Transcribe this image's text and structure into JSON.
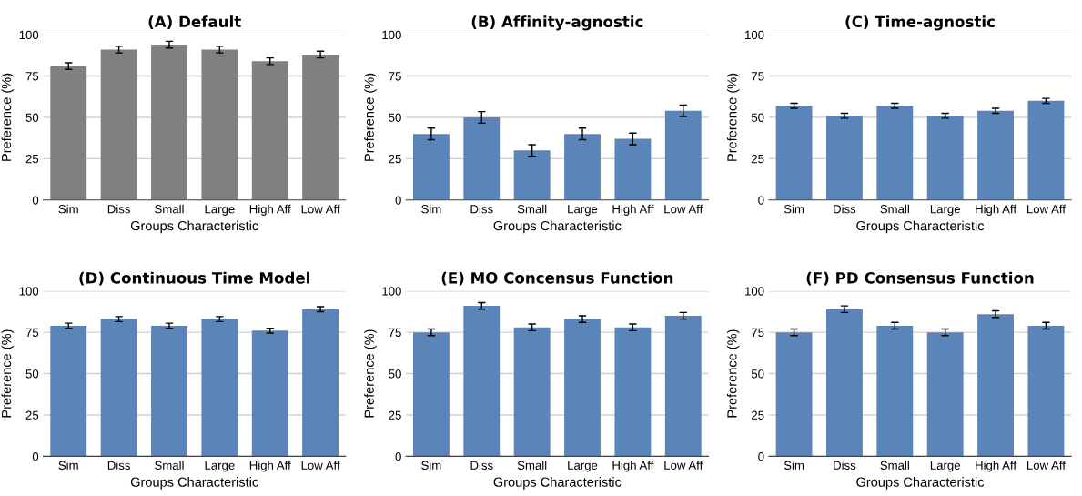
{
  "chart_data": [
    {
      "type": "bar",
      "title": "(A) Default",
      "xlabel": "Groups Characteristic",
      "ylabel": "Preference (%)",
      "categories": [
        "Sim",
        "Diss",
        "Small",
        "Large",
        "High Aff",
        "Low Aff"
      ],
      "values": [
        81,
        91,
        94,
        91,
        84,
        88
      ],
      "errors": [
        2,
        2,
        2,
        2,
        2,
        2
      ],
      "color": "#808080",
      "ylim": [
        0,
        100
      ],
      "yticks": [
        0,
        25,
        50,
        75,
        100
      ],
      "grid": "y"
    },
    {
      "type": "bar",
      "title": "(B) Affinity-agnostic",
      "xlabel": "Groups Characteristic",
      "ylabel": "Preference (%)",
      "categories": [
        "Sim",
        "Diss",
        "Small",
        "Large",
        "High Aff",
        "Low Aff"
      ],
      "values": [
        40,
        50,
        30,
        40,
        37,
        54
      ],
      "errors": [
        3.5,
        3.5,
        3.5,
        3.5,
        3.5,
        3.5
      ],
      "color": "#5b84b8",
      "ylim": [
        0,
        100
      ],
      "yticks": [
        0,
        25,
        50,
        75,
        100
      ],
      "grid": "y"
    },
    {
      "type": "bar",
      "title": "(C) Time-agnostic",
      "xlabel": "Groups Characteristic",
      "ylabel": "Preference (%)",
      "categories": [
        "Sim",
        "Diss",
        "Small",
        "Large",
        "High Aff",
        "Low Aff"
      ],
      "values": [
        57,
        51,
        57,
        51,
        54,
        60
      ],
      "errors": [
        1.5,
        1.5,
        1.5,
        1.5,
        1.5,
        1.5
      ],
      "color": "#5b84b8",
      "ylim": [
        0,
        100
      ],
      "yticks": [
        0,
        25,
        50,
        75,
        100
      ],
      "grid": "y"
    },
    {
      "type": "bar",
      "title": "(D) Continuous Time Model",
      "xlabel": "Groups Characteristic",
      "ylabel": "Preference (%)",
      "categories": [
        "Sim",
        "Diss",
        "Small",
        "Large",
        "High Aff",
        "Low Aff"
      ],
      "values": [
        79,
        83,
        79,
        83,
        76,
        89
      ],
      "errors": [
        1.5,
        1.5,
        1.5,
        1.5,
        1.5,
        1.5
      ],
      "color": "#5b84b8",
      "ylim": [
        0,
        100
      ],
      "yticks": [
        0,
        25,
        50,
        75,
        100
      ],
      "grid": "y"
    },
    {
      "type": "bar",
      "title": "(E) MO Concensus Function",
      "xlabel": "Groups Characteristic",
      "ylabel": "Preference (%)",
      "categories": [
        "Sim",
        "Diss",
        "Small",
        "Large",
        "High Aff",
        "Low Aff"
      ],
      "values": [
        75,
        91,
        78,
        83,
        78,
        85
      ],
      "errors": [
        2,
        2,
        2,
        2,
        2,
        2
      ],
      "color": "#5b84b8",
      "ylim": [
        0,
        100
      ],
      "yticks": [
        0,
        25,
        50,
        75,
        100
      ],
      "grid": "y"
    },
    {
      "type": "bar",
      "title": "(F) PD Consensus Function",
      "xlabel": "Groups Characteristic",
      "ylabel": "Preference (%)",
      "categories": [
        "Sim",
        "Diss",
        "Small",
        "Large",
        "High Aff",
        "Low Aff"
      ],
      "values": [
        75,
        89,
        79,
        75,
        86,
        79
      ],
      "errors": [
        2,
        2,
        2,
        2,
        2,
        2
      ],
      "color": "#5b84b8",
      "ylim": [
        0,
        100
      ],
      "yticks": [
        0,
        25,
        50,
        75,
        100
      ],
      "grid": "y"
    }
  ]
}
